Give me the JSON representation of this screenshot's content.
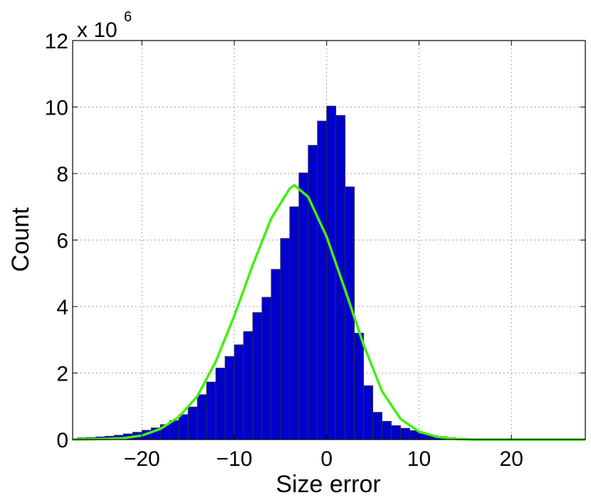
{
  "chart_data": {
    "type": "bar",
    "title": "",
    "xlabel": "Size error",
    "ylabel": "Count",
    "y_multiplier_label": "x 10",
    "y_multiplier_exponent": "6",
    "xlim": [
      -27.5,
      28
    ],
    "ylim": [
      0,
      12
    ],
    "x_ticks": [
      -20,
      -10,
      0,
      10,
      20
    ],
    "x_tick_labels": [
      "−20",
      "−10",
      "0",
      "10",
      "20"
    ],
    "y_ticks": [
      0,
      2,
      4,
      6,
      8,
      10,
      12
    ],
    "y_tick_labels": [
      "0",
      "2",
      "4",
      "6",
      "8",
      "10",
      "12"
    ],
    "grid": true,
    "bin_width": 1,
    "series": [
      {
        "kind": "histogram",
        "color": "#0000cc",
        "edge_color": "#333333",
        "x": [
          -26.5,
          -25.5,
          -24.5,
          -23.5,
          -22.5,
          -21.5,
          -20.5,
          -19.5,
          -18.5,
          -17.5,
          -16.5,
          -15.5,
          -14.5,
          -13.5,
          -12.5,
          -11.5,
          -10.5,
          -9.5,
          -8.5,
          -7.5,
          -6.5,
          -5.5,
          -4.5,
          -3.5,
          -2.5,
          -1.5,
          -0.5,
          0.5,
          1.5,
          2.5,
          3.5,
          4.5,
          5.5,
          6.5,
          7.5,
          8.5,
          9.5,
          10.5,
          11.5,
          12.5,
          13.5,
          14.5
        ],
        "values": [
          0.05,
          0.06,
          0.08,
          0.1,
          0.13,
          0.17,
          0.22,
          0.28,
          0.35,
          0.45,
          0.57,
          0.75,
          0.98,
          1.35,
          1.73,
          2.15,
          2.5,
          2.85,
          3.25,
          3.82,
          4.28,
          5.12,
          6.05,
          7.0,
          8.02,
          8.85,
          9.58,
          10.03,
          9.75,
          7.6,
          3.2,
          1.62,
          0.82,
          0.55,
          0.42,
          0.34,
          0.27,
          0.18,
          0.12,
          0.09,
          0.06,
          0.04
        ]
      },
      {
        "kind": "line",
        "color": "#44ee11",
        "x": [
          -28,
          -24,
          -22,
          -20,
          -18,
          -16,
          -14,
          -12,
          -10,
          -8,
          -6,
          -4,
          -3.5,
          -2,
          0,
          2,
          4,
          6,
          8,
          10,
          12,
          14,
          16,
          20,
          28
        ],
        "values": [
          0.0,
          0.02,
          0.04,
          0.12,
          0.32,
          0.68,
          1.3,
          2.35,
          3.72,
          5.25,
          6.65,
          7.55,
          7.65,
          7.3,
          6.1,
          4.5,
          2.85,
          1.45,
          0.62,
          0.24,
          0.08,
          0.02,
          0.0,
          0.0,
          0.0
        ]
      }
    ]
  }
}
